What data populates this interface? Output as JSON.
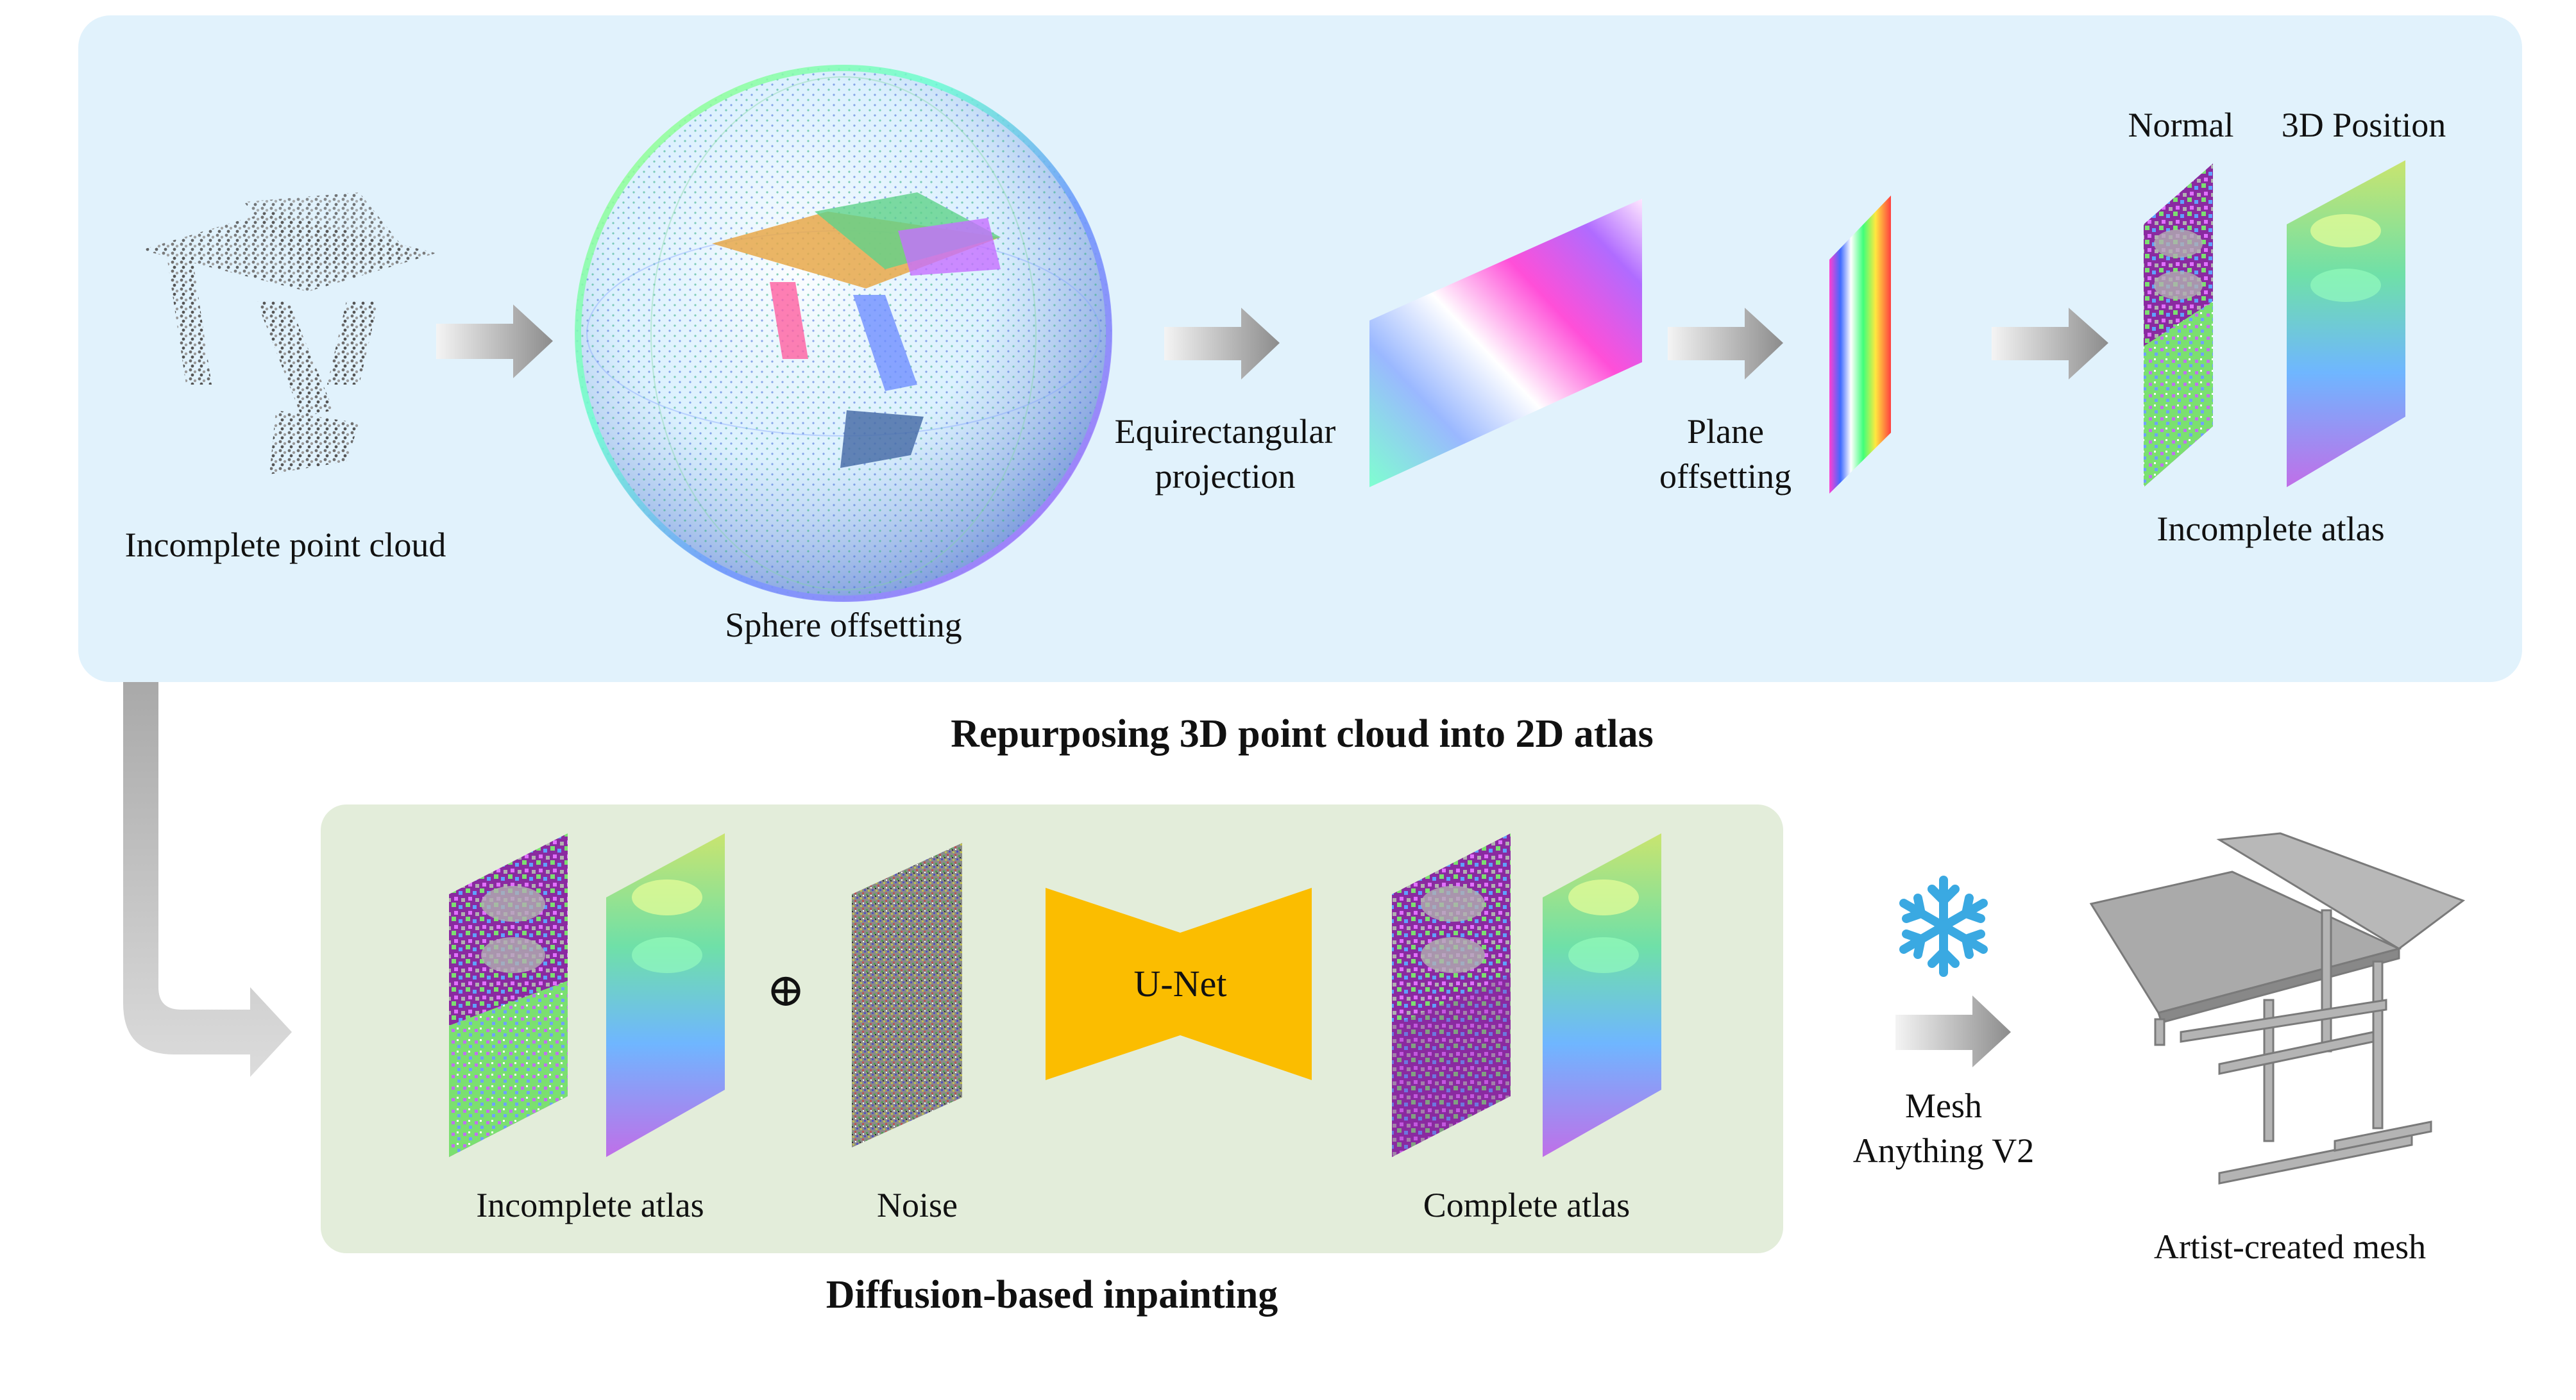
{
  "colors": {
    "top_panel": "#e1f2fc",
    "bottom_panel": "#e3edda",
    "unet": "#fbbd00",
    "arrow": "#8c8c8c",
    "snowflake": "#3aa9e2"
  },
  "top": {
    "title": "Repurposing 3D point cloud into 2D atlas",
    "steps": {
      "point_cloud": "Incomplete point cloud",
      "sphere": "Sphere offsetting",
      "equirect": [
        "Equirectangular",
        "projection"
      ],
      "plane": [
        "Plane",
        "offsetting"
      ],
      "atlas_normal": "Normal",
      "atlas_position": "3D Position",
      "atlas": "Incomplete atlas"
    }
  },
  "bottom": {
    "title": "Diffusion-based inpainting",
    "incomplete_atlas": "Incomplete atlas",
    "plus_symbol": "⊕",
    "noise": "Noise",
    "unet": "U-Net",
    "complete_atlas": "Complete atlas"
  },
  "right": {
    "model": [
      "Mesh",
      "Anything V2"
    ],
    "frozen_icon": "snowflake-icon",
    "mesh": "Artist-created mesh"
  }
}
